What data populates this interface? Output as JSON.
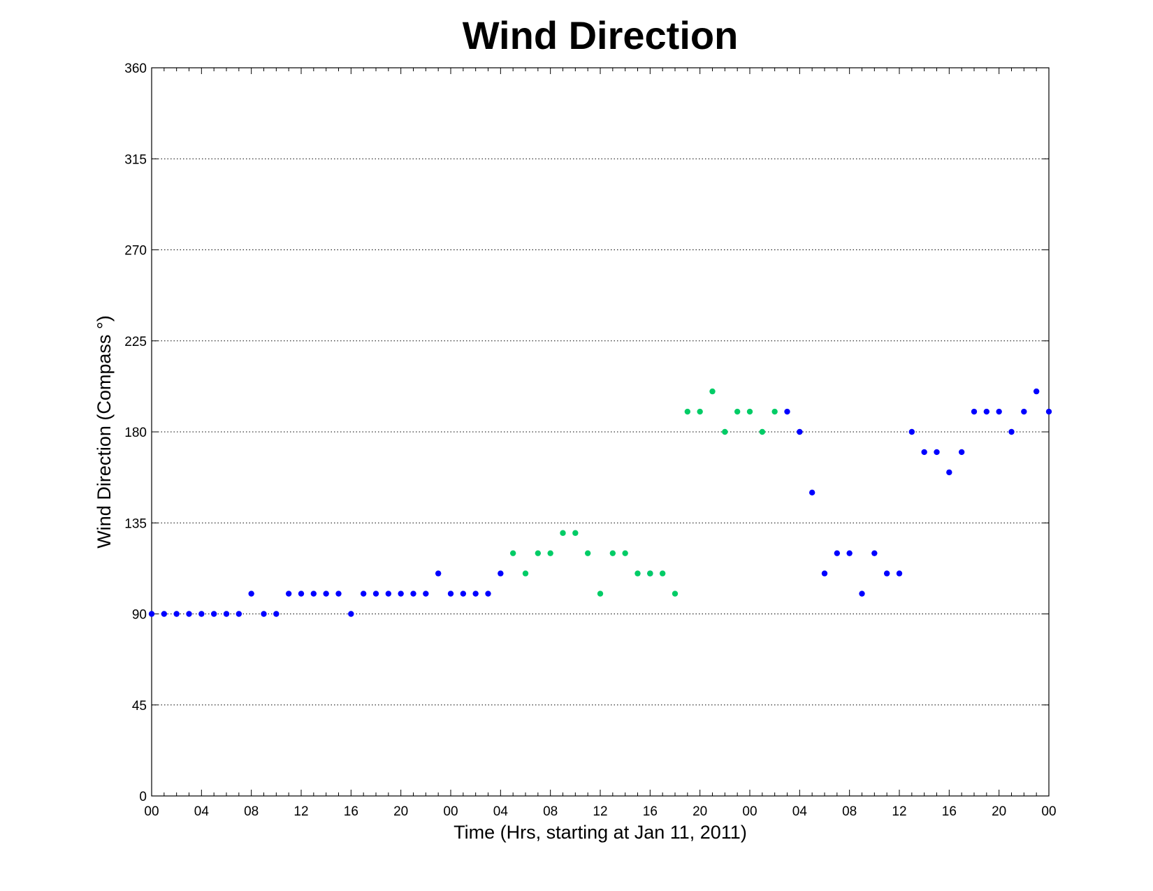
{
  "chart_data": {
    "type": "scatter",
    "title": "Wind Direction",
    "xlabel": "Time (Hrs, starting at Jan 11, 2011)",
    "ylabel": "Wind Direction (Compass  °)",
    "xlim": [
      0,
      72
    ],
    "ylim": [
      0,
      360
    ],
    "grid": "horizontal dotted",
    "x_ticks": [
      0,
      4,
      8,
      12,
      16,
      20,
      24,
      28,
      32,
      36,
      40,
      44,
      48,
      52,
      56,
      60,
      64,
      68,
      72
    ],
    "x_tick_labels": [
      "00",
      "04",
      "08",
      "12",
      "16",
      "20",
      "00",
      "04",
      "08",
      "12",
      "16",
      "20",
      "00",
      "04",
      "08",
      "12",
      "16",
      "20",
      "00"
    ],
    "y_ticks": [
      0,
      45,
      90,
      135,
      180,
      225,
      270,
      315,
      360
    ],
    "y_tick_labels": [
      "0",
      "45",
      "90",
      "135",
      "180",
      "225",
      "270",
      "315",
      "360"
    ],
    "series": [
      {
        "color": "#0000ff",
        "points": [
          [
            0,
            90
          ],
          [
            1,
            90
          ],
          [
            2,
            90
          ],
          [
            3,
            90
          ],
          [
            4,
            90
          ],
          [
            5,
            90
          ],
          [
            6,
            90
          ],
          [
            7,
            90
          ],
          [
            8,
            100
          ],
          [
            9,
            90
          ],
          [
            10,
            90
          ],
          [
            11,
            100
          ],
          [
            12,
            100
          ],
          [
            13,
            100
          ],
          [
            14,
            100
          ],
          [
            15,
            100
          ],
          [
            16,
            90
          ],
          [
            17,
            100
          ],
          [
            18,
            100
          ],
          [
            19,
            100
          ],
          [
            20,
            100
          ],
          [
            21,
            100
          ],
          [
            22,
            100
          ],
          [
            23,
            110
          ],
          [
            24,
            100
          ],
          [
            25,
            100
          ],
          [
            26,
            100
          ],
          [
            27,
            100
          ],
          [
            28,
            110
          ],
          [
            40,
            110
          ],
          [
            51,
            190
          ],
          [
            52,
            180
          ],
          [
            53,
            150
          ],
          [
            54,
            110
          ],
          [
            55,
            120
          ],
          [
            56,
            120
          ],
          [
            57,
            100
          ],
          [
            58,
            120
          ],
          [
            59,
            110
          ],
          [
            60,
            110
          ],
          [
            61,
            180
          ],
          [
            62,
            170
          ],
          [
            63,
            170
          ],
          [
            64,
            160
          ],
          [
            65,
            170
          ],
          [
            66,
            190
          ],
          [
            67,
            190
          ],
          [
            68,
            190
          ],
          [
            69,
            180
          ],
          [
            70,
            190
          ],
          [
            71,
            200
          ],
          [
            72,
            190
          ]
        ]
      },
      {
        "color": "#00cc66",
        "points": [
          [
            29,
            120
          ],
          [
            30,
            110
          ],
          [
            31,
            120
          ],
          [
            32,
            120
          ],
          [
            33,
            130
          ],
          [
            34,
            130
          ],
          [
            35,
            120
          ],
          [
            36,
            100
          ],
          [
            37,
            120
          ],
          [
            38,
            120
          ],
          [
            39,
            110
          ],
          [
            40,
            110
          ],
          [
            41,
            110
          ],
          [
            42,
            100
          ],
          [
            43,
            190
          ],
          [
            44,
            190
          ],
          [
            45,
            200
          ],
          [
            46,
            180
          ],
          [
            47,
            190
          ],
          [
            48,
            190
          ],
          [
            49,
            180
          ],
          [
            50,
            190
          ]
        ]
      }
    ]
  }
}
